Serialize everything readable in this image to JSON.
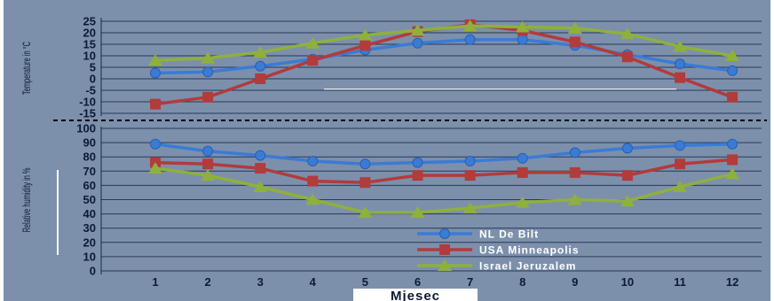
{
  "chart_data": [
    {
      "type": "line",
      "ylabel": "Temperature in °C",
      "ylim": [
        -15,
        25
      ],
      "yticks": [
        25,
        20,
        15,
        10,
        5,
        0,
        -5,
        -10,
        -15
      ],
      "grid": true,
      "x": [
        1,
        2,
        3,
        4,
        5,
        6,
        7,
        8,
        9,
        10,
        11,
        12
      ],
      "series": [
        {
          "name": "NL De Bilt",
          "color": "#3a7bd5",
          "marker": "circle",
          "values": [
            2.5,
            3,
            5.5,
            8.5,
            12.5,
            15.5,
            17,
            17,
            14.5,
            10.5,
            6.5,
            3.5
          ]
        },
        {
          "name": "USA Minneapolis",
          "color": "#b23b3b",
          "marker": "square",
          "values": [
            -11,
            -8,
            0,
            8,
            14.5,
            20.5,
            23.5,
            21,
            16,
            9.5,
            0.5,
            -8
          ]
        },
        {
          "name": "Israel Jeruzalem",
          "color": "#8fb03c",
          "marker": "triangle",
          "values": [
            8,
            9,
            11.5,
            15.5,
            19,
            21,
            23,
            22.5,
            22,
            19.5,
            14,
            10
          ]
        }
      ]
    },
    {
      "type": "line",
      "ylabel": "Relative humidity in %",
      "xlabel": "Mjesec",
      "ylim": [
        0,
        100
      ],
      "yticks": [
        100,
        90,
        80,
        70,
        60,
        50,
        40,
        30,
        20,
        10,
        0
      ],
      "xticks": [
        "1",
        "2",
        "3",
        "4",
        "5",
        "6",
        "7",
        "8",
        "9",
        "10",
        "11",
        "12"
      ],
      "grid": true,
      "legend": "bottom-right",
      "x": [
        1,
        2,
        3,
        4,
        5,
        6,
        7,
        8,
        9,
        10,
        11,
        12
      ],
      "series": [
        {
          "name": "NL De Bilt",
          "color": "#3a7bd5",
          "marker": "circle",
          "values": [
            89,
            84,
            81,
            77,
            75,
            76,
            77,
            79,
            83,
            86,
            88,
            89
          ]
        },
        {
          "name": "USA Minneapolis",
          "color": "#b23b3b",
          "marker": "square",
          "values": [
            76,
            75,
            72,
            63,
            62,
            67,
            67,
            69,
            69,
            67,
            75,
            78
          ]
        },
        {
          "name": "Israel Jeruzalem",
          "color": "#8fb03c",
          "marker": "triangle",
          "values": [
            72,
            67,
            59,
            50,
            41,
            41,
            44,
            48,
            50,
            49,
            59,
            68
          ]
        }
      ]
    }
  ],
  "colors": {
    "background": "#7c90ac",
    "grid": "#1a2a4a",
    "divider": "#000000",
    "text": "#0c1a33",
    "legend_text": "#ffffff",
    "xtitle_box": "#ffffff"
  }
}
